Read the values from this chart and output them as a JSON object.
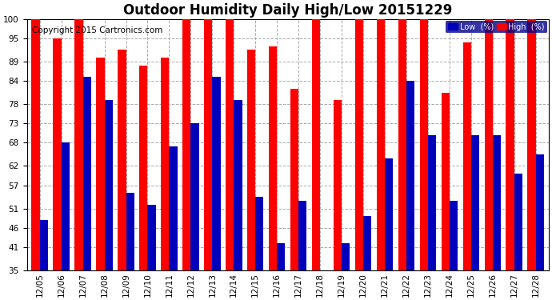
{
  "title": "Outdoor Humidity Daily High/Low 20151229",
  "copyright": "Copyright 2015 Cartronics.com",
  "dates": [
    "12/05",
    "12/06",
    "12/07",
    "12/08",
    "12/09",
    "12/10",
    "12/11",
    "12/12",
    "12/13",
    "12/14",
    "12/15",
    "12/16",
    "12/17",
    "12/18",
    "12/19",
    "12/20",
    "12/21",
    "12/22",
    "12/23",
    "12/24",
    "12/25",
    "12/26",
    "12/27",
    "12/28"
  ],
  "high": [
    100,
    95,
    100,
    90,
    92,
    88,
    90,
    100,
    100,
    100,
    92,
    93,
    82,
    100,
    79,
    100,
    100,
    100,
    100,
    81,
    94,
    100,
    100,
    100
  ],
  "low": [
    48,
    68,
    85,
    79,
    55,
    52,
    67,
    73,
    85,
    79,
    54,
    42,
    53,
    35,
    42,
    49,
    64,
    84,
    70,
    53,
    70,
    70,
    60,
    65
  ],
  "high_color": "#ff0000",
  "low_color": "#0000bb",
  "bg_color": "#ffffff",
  "plot_bg_color": "#ffffff",
  "grid_color": "#aaaaaa",
  "ylim_min": 35,
  "ylim_max": 100,
  "yticks": [
    35,
    41,
    46,
    51,
    57,
    62,
    68,
    73,
    78,
    84,
    89,
    95,
    100
  ],
  "legend_low_label": "Low  (%)",
  "legend_high_label": "High  (%)",
  "title_fontsize": 12,
  "copyright_fontsize": 7.5,
  "tick_fontsize": 7.5,
  "bar_width": 0.38
}
